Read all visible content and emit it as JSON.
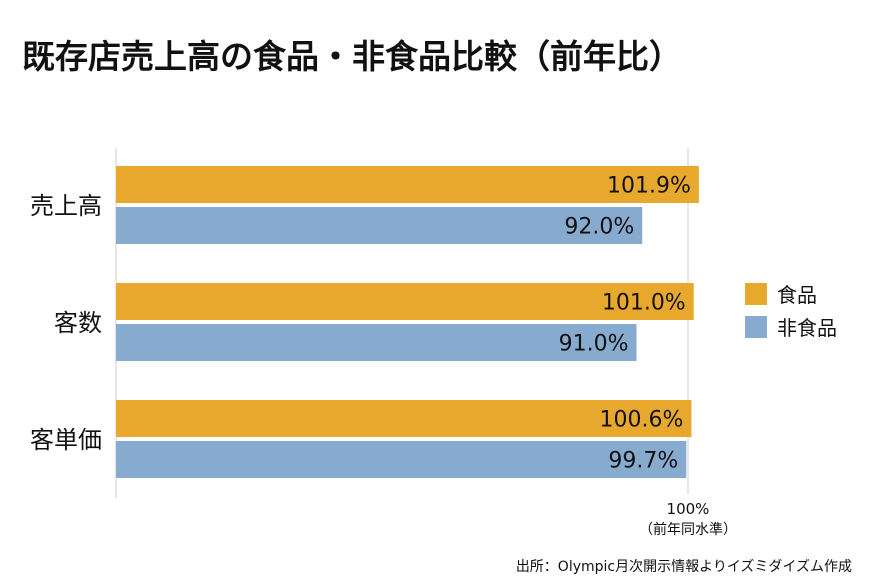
{
  "chart_data": {
    "type": "bar",
    "orientation": "horizontal",
    "title": "既存店売上高の食品・非食品比較（前年比）",
    "categories": [
      "売上高",
      "客数",
      "客単価"
    ],
    "series": [
      {
        "name": "食品",
        "values": [
          101.9,
          101.0,
          100.6
        ],
        "labels": [
          "101.9%",
          "101.0%",
          "100.6%"
        ],
        "color": "#E8A82E"
      },
      {
        "name": "非食品",
        "values": [
          92.0,
          91.0,
          99.7
        ],
        "labels": [
          "92.0%",
          "91.0%",
          "99.7%"
        ],
        "color": "#87AACF"
      }
    ],
    "reference_line": {
      "value": 100,
      "label": "100%",
      "sublabel": "（前年同水準）"
    },
    "legend_position": "right",
    "source": "出所：Olympic月次開示情報よりイズミダイズム作成"
  }
}
